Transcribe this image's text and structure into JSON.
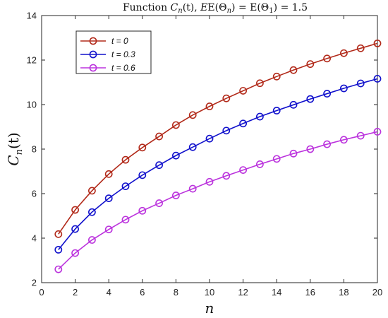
{
  "chart_data": {
    "type": "line",
    "title": "Function C_n(t), E(Θ_n) = E(Θ_1) = 1.5",
    "title_parts": {
      "prefix": "Function ",
      "C": "C",
      "n": "n",
      "t_arg": "(t), ",
      "E1": "E(Θ",
      "E1_sub": "n",
      "E_mid": ") = E(Θ",
      "E2_sub": "1",
      "E_end": ") = 1.5"
    },
    "xlabel": "n",
    "ylabel_parts": {
      "C": "C",
      "sub": "n",
      "arg": "(t)"
    },
    "xlim": [
      0,
      20
    ],
    "ylim": [
      2,
      14
    ],
    "xticks": [
      0,
      2,
      4,
      6,
      8,
      10,
      12,
      14,
      16,
      18,
      20
    ],
    "yticks": [
      2,
      4,
      6,
      8,
      10,
      12,
      14
    ],
    "grid": false,
    "legend_position": "top-left",
    "x": [
      1,
      2,
      3,
      4,
      5,
      6,
      7,
      8,
      9,
      10,
      11,
      12,
      13,
      14,
      15,
      16,
      17,
      18,
      19,
      20
    ],
    "series": [
      {
        "name": "t = 0",
        "color": "#b22a1a",
        "values": [
          4.18,
          5.27,
          6.13,
          6.88,
          7.52,
          8.07,
          8.57,
          9.08,
          9.53,
          9.92,
          10.28,
          10.62,
          10.96,
          11.26,
          11.55,
          11.82,
          12.07,
          12.31,
          12.53,
          12.75
        ]
      },
      {
        "name": "t = 0.3",
        "color": "#1111cc",
        "values": [
          3.48,
          4.41,
          5.17,
          5.79,
          6.33,
          6.83,
          7.28,
          7.71,
          8.09,
          8.47,
          8.83,
          9.15,
          9.46,
          9.73,
          9.99,
          10.25,
          10.49,
          10.73,
          10.95,
          11.16
        ]
      },
      {
        "name": "t = 0.6",
        "color": "#bb33dd",
        "values": [
          2.6,
          3.33,
          3.92,
          4.39,
          4.83,
          5.23,
          5.57,
          5.92,
          6.22,
          6.53,
          6.8,
          7.06,
          7.32,
          7.56,
          7.8,
          8.0,
          8.22,
          8.42,
          8.6,
          8.78
        ]
      }
    ]
  }
}
